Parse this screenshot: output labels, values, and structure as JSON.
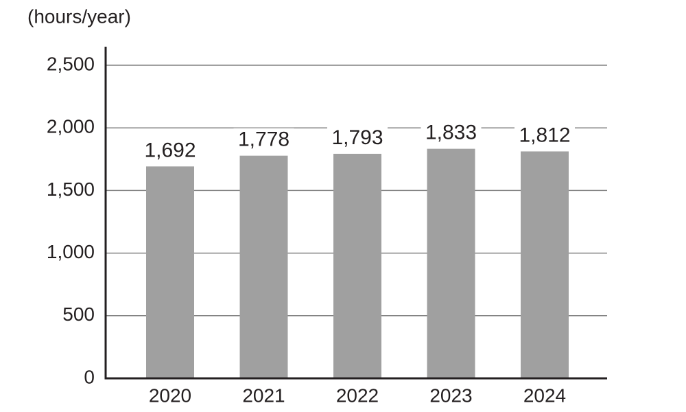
{
  "chart_data": {
    "type": "bar",
    "y_label": "(hours/year)",
    "categories": [
      "2020",
      "2021",
      "2022",
      "2023",
      "2024"
    ],
    "values": [
      1692,
      1778,
      1793,
      1833,
      1812
    ],
    "value_labels": [
      "1,692",
      "1,778",
      "1,793",
      "1,833",
      "1,812"
    ],
    "color": "#a0a0a0",
    "ylim": [
      0,
      2500
    ],
    "yticks": [
      0,
      500,
      {
        "value": 1000,
        "label": "1,000"
      },
      {
        "value": 1500,
        "label": "1,500"
      },
      {
        "value": 2000,
        "label": "2,000"
      },
      {
        "value": 2500,
        "label": "2,500"
      }
    ],
    "grid": true
  }
}
